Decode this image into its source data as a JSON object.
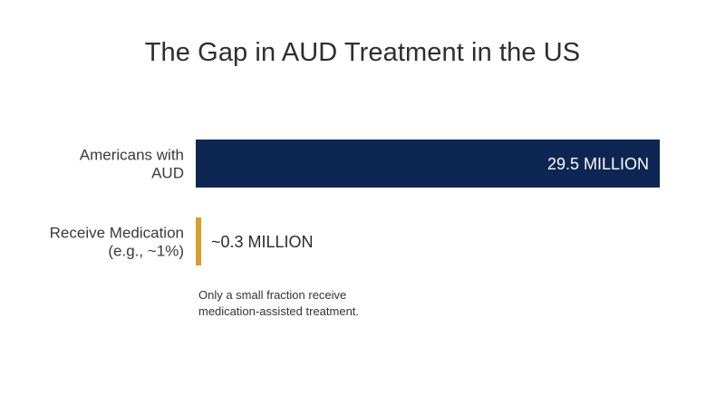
{
  "chart_data": {
    "type": "bar",
    "orientation": "horizontal",
    "title": "The Gap in AUD Treatment in the US",
    "categories": [
      [
        "Americans with",
        "AUD"
      ],
      [
        "Receive Medication",
        "(e.g., ~1%)"
      ]
    ],
    "values": [
      29.5,
      0.3
    ],
    "value_labels": [
      "29.5 MILLION",
      "~0.3 MILLION"
    ],
    "unit": "million",
    "xlim": [
      0,
      29.5
    ],
    "colors": [
      "#0d2653",
      "#d89e2e"
    ],
    "value_label_colors": [
      "#ffffff",
      "#2b2b2b"
    ],
    "annotation": "Only a small fraction receive medication-assisted treatment.",
    "grid": false,
    "legend": "none"
  }
}
